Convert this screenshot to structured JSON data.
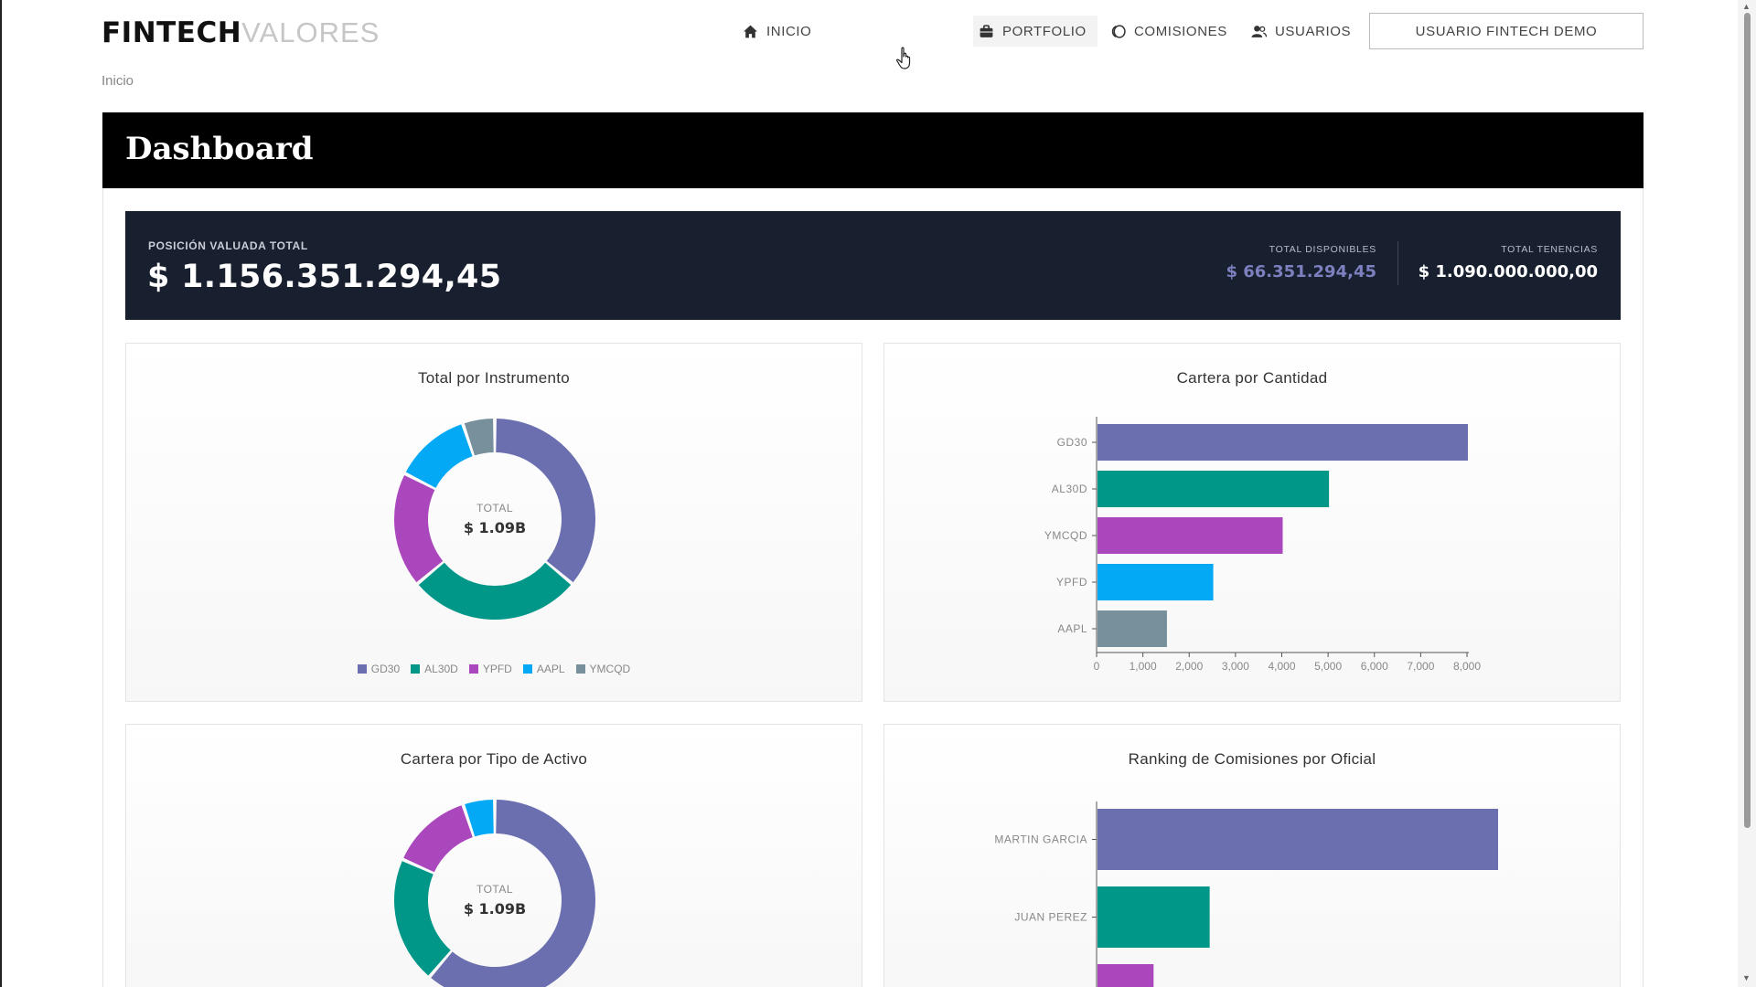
{
  "nav": {
    "logo_bold": "FINTECH",
    "logo_light": "VALORES",
    "items": [
      {
        "label": "INICIO",
        "icon": "home-icon"
      },
      {
        "label": "PORTFOLIO",
        "icon": "briefcase-icon"
      },
      {
        "label": "COMISIONES",
        "icon": "coins-icon"
      },
      {
        "label": "USUARIOS",
        "icon": "users-icon"
      }
    ],
    "user_button": "USUARIO FINTECH DEMO"
  },
  "breadcrumb": "Inicio",
  "page_title": "Dashboard",
  "summary": {
    "total_label": "POSICIÓN VALUADA TOTAL",
    "total_value": "$ 1.156.351.294,45",
    "disponibles_label": "TOTAL DISPONIBLES",
    "disponibles_value": "$ 66.351.294,45",
    "tenencias_label": "TOTAL TENENCIAS",
    "tenencias_value": "$ 1.090.000.000,00"
  },
  "colors": {
    "purple": "#6b6fb0",
    "teal": "#009688",
    "magenta": "#ab47bc",
    "blue": "#03a9f4",
    "gray": "#78909c",
    "banner_bg": "#18202f"
  },
  "chart_data": [
    {
      "type": "pie",
      "title": "Total por Instrumento",
      "center_label": "TOTAL",
      "center_value": "$ 1.09B",
      "categories": [
        "GD30",
        "AL30D",
        "YPFD",
        "AAPL",
        "YMCQD"
      ],
      "values": [
        35,
        27,
        18,
        12,
        5
      ],
      "colors": [
        "#6b6fb0",
        "#009688",
        "#ab47bc",
        "#03a9f4",
        "#78909c"
      ],
      "legend": "bottom"
    },
    {
      "type": "bar",
      "orientation": "horizontal",
      "title": "Cartera por Cantidad",
      "categories": [
        "GD30",
        "AL30D",
        "YMCQD",
        "YPFD",
        "AAPL"
      ],
      "values": [
        8000,
        5000,
        4000,
        2500,
        1500
      ],
      "colors": [
        "#6b6fb0",
        "#009688",
        "#ab47bc",
        "#03a9f4",
        "#78909c"
      ],
      "xlim": [
        0,
        8000
      ],
      "xticks": [
        "0",
        "1,000",
        "2,000",
        "3,000",
        "4,000",
        "5,000",
        "6,000",
        "7,000",
        "8,000"
      ]
    },
    {
      "type": "pie",
      "title": "Cartera por Tipo de Activo",
      "center_label": "TOTAL",
      "center_value": "$ 1.09B",
      "values": [
        60,
        20,
        13,
        5
      ],
      "colors": [
        "#6b6fb0",
        "#009688",
        "#ab47bc",
        "#03a9f4"
      ]
    },
    {
      "type": "bar",
      "orientation": "horizontal",
      "title": "Ranking de Comisiones por Oficial",
      "categories": [
        "MARTIN GARCIA",
        "JUAN PEREZ",
        ""
      ],
      "values": [
        100,
        28,
        14
      ],
      "colors": [
        "#6b6fb0",
        "#009688",
        "#ab47bc"
      ]
    }
  ]
}
